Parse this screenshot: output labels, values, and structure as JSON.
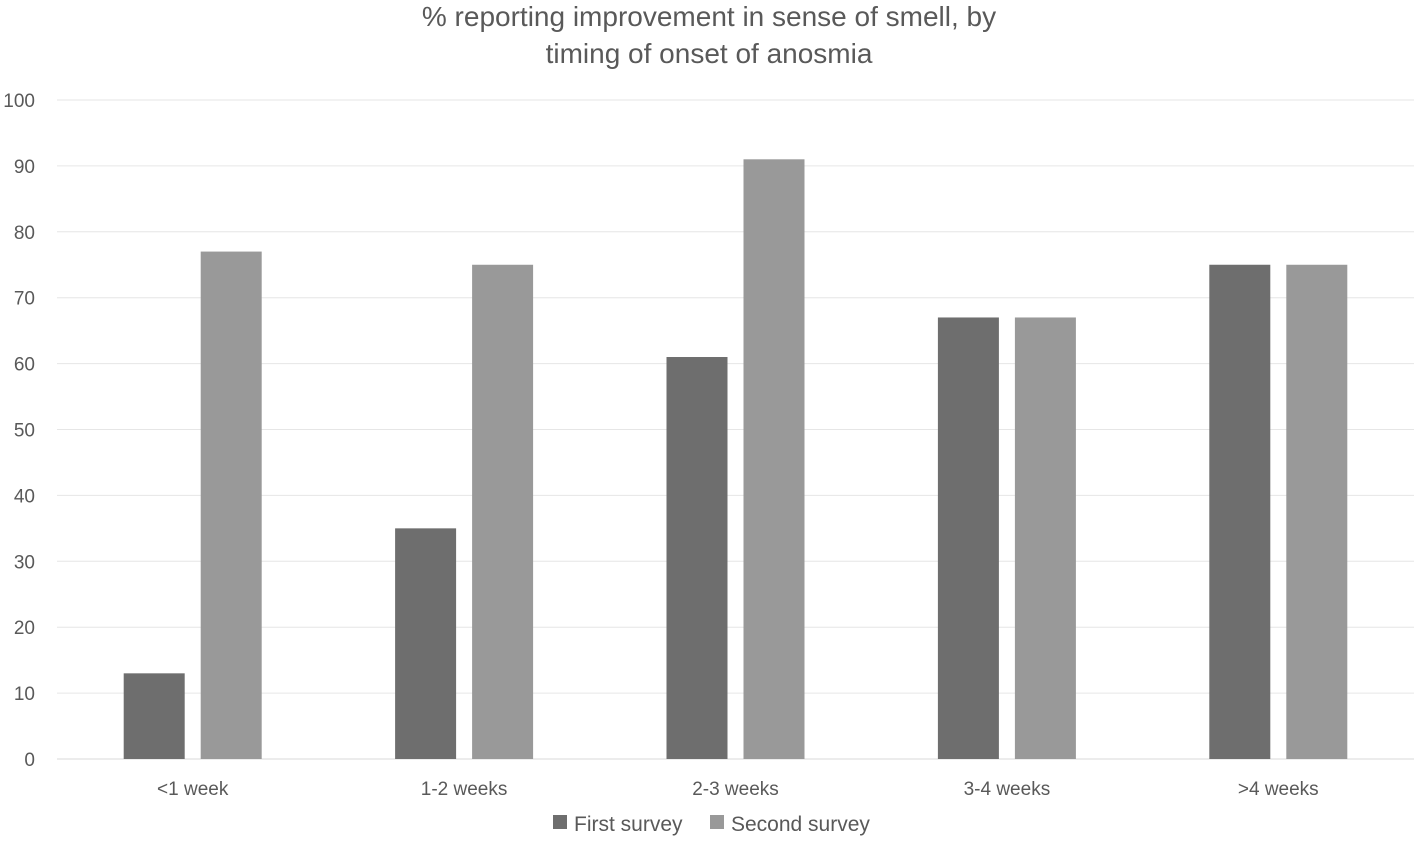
{
  "chart_data": {
    "type": "bar",
    "title_lines": [
      "% reporting improvement in sense of smell, by",
      "timing of onset of anosmia"
    ],
    "categories": [
      "<1 week",
      "1-2 weeks",
      "2-3 weeks",
      "3-4 weeks",
      ">4 weeks"
    ],
    "series": [
      {
        "name": "First survey",
        "color": "#6e6e6e",
        "values": [
          13,
          35,
          61,
          67,
          75
        ]
      },
      {
        "name": "Second survey",
        "color": "#999999",
        "values": [
          77,
          75,
          91,
          67,
          75
        ]
      }
    ],
    "ylim": [
      0,
      100
    ],
    "yticks": [
      0,
      10,
      20,
      30,
      40,
      50,
      60,
      70,
      80,
      90,
      100
    ],
    "grid": true,
    "legend_position": "bottom",
    "xlabel": "",
    "ylabel": ""
  }
}
